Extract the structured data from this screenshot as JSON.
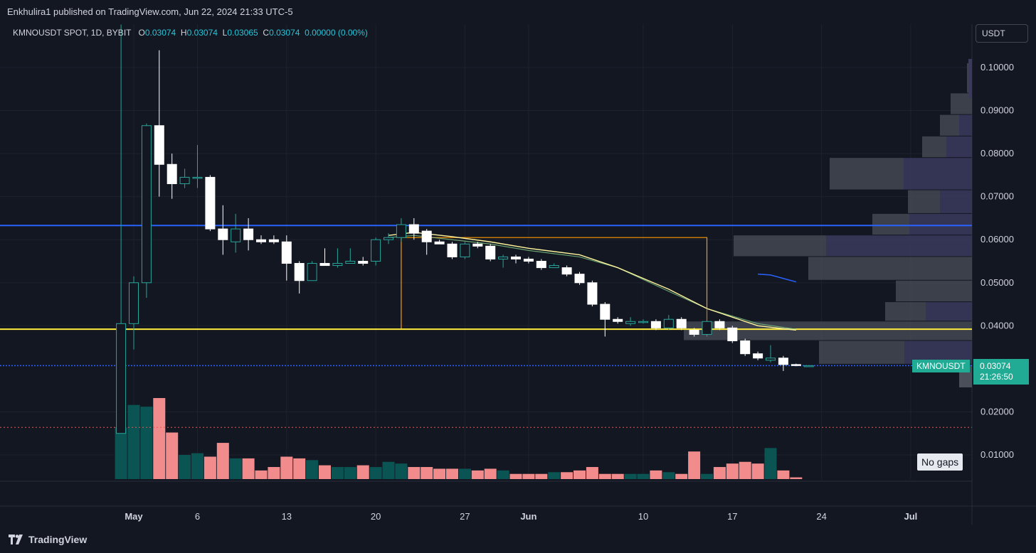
{
  "header": {
    "publisher": "Enkhulira1 published on TradingView.com, Jun 22, 2024 21:33 UTC-5"
  },
  "legend": {
    "symbol": "KMNOUSDT SPOT, 1D, BYBIT",
    "o_label": "O",
    "o": "0.03074",
    "h_label": "H",
    "h": "0.03074",
    "l_label": "L",
    "l": "0.03065",
    "c_label": "C",
    "c": "0.03074",
    "change": "0.00000 (0.00%)"
  },
  "currency": "USDT",
  "no_gaps": "No gaps",
  "last_price": {
    "ticker": "KMNOUSDT",
    "price": "0.03074",
    "countdown": "21:26:50"
  },
  "footer": {
    "brand": "TradingView"
  },
  "colors": {
    "up": "#26a69a",
    "down": "#ef5350",
    "bull_body": "#131722",
    "bear_body": "#ffffff",
    "vol_up": "#0b5454",
    "vol_down": "#f28b8b",
    "blue_line": "#2962ff",
    "yellow_line": "#ffeb3b",
    "orange_rect": "#ff9800",
    "ma_yellow": "#fff59d",
    "ma_green": "#81c784",
    "background": "#131722",
    "grid": "#1e222d"
  },
  "chart_data": {
    "type": "candlestick",
    "y_axis": {
      "ticks": [
        "0.10000",
        "0.09000",
        "0.08000",
        "0.07000",
        "0.06000",
        "0.05000",
        "0.04000",
        "0.02000",
        "0.01000"
      ],
      "ylim": [
        0.004,
        0.108
      ]
    },
    "x_axis": {
      "ticks": [
        "May",
        "6",
        "13",
        "20",
        "27",
        "Jun",
        "10",
        "17",
        "24",
        "Jul"
      ]
    },
    "x_tick_days": [
      0,
      5,
      12,
      19,
      26,
      31,
      40,
      47,
      54,
      61
    ],
    "horizontal_lines": [
      {
        "name": "resistance",
        "price": 0.0633,
        "color": "#2962ff"
      },
      {
        "name": "support",
        "price": 0.0392,
        "color": "#ffeb3b"
      },
      {
        "name": "last",
        "price": 0.03074,
        "color": "#2962ff",
        "dotted": true
      }
    ],
    "candles": [
      {
        "d": -1,
        "o": 0.015,
        "h": 0.11,
        "l": 0.015,
        "c": 0.0405
      },
      {
        "d": 0,
        "o": 0.0405,
        "h": 0.0515,
        "l": 0.0345,
        "c": 0.05
      },
      {
        "d": 1,
        "o": 0.05,
        "h": 0.087,
        "l": 0.0465,
        "c": 0.0865
      },
      {
        "d": 2,
        "o": 0.0865,
        "h": 0.104,
        "l": 0.07,
        "c": 0.0775
      },
      {
        "d": 3,
        "o": 0.0775,
        "h": 0.08,
        "l": 0.0695,
        "c": 0.073
      },
      {
        "d": 4,
        "o": 0.073,
        "h": 0.0765,
        "l": 0.072,
        "c": 0.0745
      },
      {
        "d": 5,
        "o": 0.0745,
        "h": 0.082,
        "l": 0.072,
        "c": 0.0745
      },
      {
        "d": 6,
        "o": 0.0745,
        "h": 0.075,
        "l": 0.062,
        "c": 0.0625
      },
      {
        "d": 7,
        "o": 0.0625,
        "h": 0.068,
        "l": 0.0565,
        "c": 0.06
      },
      {
        "d": 8,
        "o": 0.0595,
        "h": 0.066,
        "l": 0.057,
        "c": 0.0625
      },
      {
        "d": 9,
        "o": 0.0625,
        "h": 0.065,
        "l": 0.0575,
        "c": 0.06
      },
      {
        "d": 10,
        "o": 0.06,
        "h": 0.061,
        "l": 0.059,
        "c": 0.0595
      },
      {
        "d": 11,
        "o": 0.06,
        "h": 0.061,
        "l": 0.059,
        "c": 0.0595
      },
      {
        "d": 12,
        "o": 0.0595,
        "h": 0.061,
        "l": 0.0505,
        "c": 0.0545
      },
      {
        "d": 13,
        "o": 0.0545,
        "h": 0.055,
        "l": 0.0475,
        "c": 0.0505
      },
      {
        "d": 14,
        "o": 0.0505,
        "h": 0.055,
        "l": 0.0505,
        "c": 0.0545
      },
      {
        "d": 15,
        "o": 0.0545,
        "h": 0.058,
        "l": 0.054,
        "c": 0.054
      },
      {
        "d": 16,
        "o": 0.054,
        "h": 0.058,
        "l": 0.0535,
        "c": 0.0545
      },
      {
        "d": 17,
        "o": 0.0545,
        "h": 0.058,
        "l": 0.0545,
        "c": 0.055
      },
      {
        "d": 18,
        "o": 0.055,
        "h": 0.056,
        "l": 0.054,
        "c": 0.0545
      },
      {
        "d": 19,
        "o": 0.055,
        "h": 0.0605,
        "l": 0.054,
        "c": 0.06
      },
      {
        "d": 20,
        "o": 0.06,
        "h": 0.0615,
        "l": 0.059,
        "c": 0.0605
      },
      {
        "d": 21,
        "o": 0.0605,
        "h": 0.065,
        "l": 0.0595,
        "c": 0.0635
      },
      {
        "d": 22,
        "o": 0.0635,
        "h": 0.065,
        "l": 0.06,
        "c": 0.0615
      },
      {
        "d": 23,
        "o": 0.062,
        "h": 0.0625,
        "l": 0.0565,
        "c": 0.0595
      },
      {
        "d": 24,
        "o": 0.0595,
        "h": 0.06,
        "l": 0.059,
        "c": 0.059
      },
      {
        "d": 25,
        "o": 0.059,
        "h": 0.0595,
        "l": 0.0555,
        "c": 0.056
      },
      {
        "d": 26,
        "o": 0.056,
        "h": 0.0595,
        "l": 0.0555,
        "c": 0.059
      },
      {
        "d": 27,
        "o": 0.059,
        "h": 0.0595,
        "l": 0.058,
        "c": 0.0585
      },
      {
        "d": 28,
        "o": 0.0585,
        "h": 0.059,
        "l": 0.055,
        "c": 0.0555
      },
      {
        "d": 29,
        "o": 0.0555,
        "h": 0.0565,
        "l": 0.0535,
        "c": 0.056
      },
      {
        "d": 30,
        "o": 0.056,
        "h": 0.0565,
        "l": 0.0545,
        "c": 0.0555
      },
      {
        "d": 31,
        "o": 0.0555,
        "h": 0.056,
        "l": 0.0545,
        "c": 0.055
      },
      {
        "d": 32,
        "o": 0.055,
        "h": 0.0555,
        "l": 0.053,
        "c": 0.0535
      },
      {
        "d": 33,
        "o": 0.0535,
        "h": 0.0545,
        "l": 0.0535,
        "c": 0.054
      },
      {
        "d": 34,
        "o": 0.0535,
        "h": 0.054,
        "l": 0.0515,
        "c": 0.052
      },
      {
        "d": 35,
        "o": 0.052,
        "h": 0.0525,
        "l": 0.0495,
        "c": 0.05
      },
      {
        "d": 36,
        "o": 0.05,
        "h": 0.0505,
        "l": 0.0445,
        "c": 0.045
      },
      {
        "d": 37,
        "o": 0.045,
        "h": 0.0455,
        "l": 0.0375,
        "c": 0.0415
      },
      {
        "d": 38,
        "o": 0.0415,
        "h": 0.042,
        "l": 0.0405,
        "c": 0.041
      },
      {
        "d": 39,
        "o": 0.0405,
        "h": 0.042,
        "l": 0.04,
        "c": 0.041
      },
      {
        "d": 40,
        "o": 0.041,
        "h": 0.0415,
        "l": 0.0405,
        "c": 0.041
      },
      {
        "d": 41,
        "o": 0.041,
        "h": 0.0415,
        "l": 0.039,
        "c": 0.0395
      },
      {
        "d": 42,
        "o": 0.0395,
        "h": 0.0425,
        "l": 0.039,
        "c": 0.0415
      },
      {
        "d": 43,
        "o": 0.0415,
        "h": 0.042,
        "l": 0.039,
        "c": 0.0395
      },
      {
        "d": 44,
        "o": 0.039,
        "h": 0.0395,
        "l": 0.0375,
        "c": 0.038
      },
      {
        "d": 45,
        "o": 0.038,
        "h": 0.044,
        "l": 0.0375,
        "c": 0.041
      },
      {
        "d": 46,
        "o": 0.041,
        "h": 0.0415,
        "l": 0.039,
        "c": 0.0395
      },
      {
        "d": 47,
        "o": 0.0395,
        "h": 0.04,
        "l": 0.036,
        "c": 0.0365
      },
      {
        "d": 48,
        "o": 0.0365,
        "h": 0.037,
        "l": 0.033,
        "c": 0.0335
      },
      {
        "d": 49,
        "o": 0.0335,
        "h": 0.034,
        "l": 0.032,
        "c": 0.0325
      },
      {
        "d": 50,
        "o": 0.032,
        "h": 0.0355,
        "l": 0.0315,
        "c": 0.0325
      },
      {
        "d": 51,
        "o": 0.0325,
        "h": 0.033,
        "l": 0.0295,
        "c": 0.031
      },
      {
        "d": 52,
        "o": 0.031,
        "h": 0.0312,
        "l": 0.0306,
        "c": 0.0308
      },
      {
        "d": 53,
        "o": 0.03074,
        "h": 0.03074,
        "l": 0.03065,
        "c": 0.03074
      }
    ],
    "volume": [
      0.015,
      0.0215,
      0.021,
      0.0235,
      0.0135,
      0.007,
      0.0075,
      0.0065,
      0.0105,
      0.006,
      0.006,
      0.0025,
      0.0035,
      0.0065,
      0.006,
      0.0055,
      0.004,
      0.0035,
      0.0035,
      0.004,
      0.0035,
      0.005,
      0.0045,
      0.0035,
      0.0035,
      0.003,
      0.003,
      0.003,
      0.0025,
      0.003,
      0.0025,
      0.0015,
      0.0015,
      0.0015,
      0.002,
      0.002,
      0.0025,
      0.0035,
      0.0015,
      0.0015,
      0.0015,
      0.0015,
      0.0025,
      0.002,
      0.0015,
      0.008,
      0.0015,
      0.0035,
      0.0045,
      0.005,
      0.0045,
      0.009,
      0.0025,
      0.0005
    ],
    "volume_ylim": [
      0,
      0.028
    ],
    "ma_yellow": [
      [
        20,
        0.061
      ],
      [
        22,
        0.0617
      ],
      [
        25,
        0.0607
      ],
      [
        28,
        0.0595
      ],
      [
        31,
        0.058
      ],
      [
        35,
        0.0565
      ],
      [
        38,
        0.0535
      ],
      [
        42,
        0.0485
      ],
      [
        45,
        0.044
      ],
      [
        49,
        0.04
      ],
      [
        52,
        0.039
      ]
    ],
    "ma_green": [
      [
        20,
        0.0605
      ],
      [
        22,
        0.061
      ],
      [
        25,
        0.06
      ],
      [
        28,
        0.059
      ],
      [
        31,
        0.0575
      ],
      [
        35,
        0.056
      ],
      [
        38,
        0.0535
      ],
      [
        42,
        0.048
      ],
      [
        45,
        0.044
      ],
      [
        49,
        0.0405
      ],
      [
        52,
        0.0392
      ]
    ],
    "ma_blue_small": [
      [
        49,
        0.052
      ],
      [
        50,
        0.0518
      ],
      [
        51,
        0.051
      ],
      [
        52,
        0.0502
      ]
    ],
    "orange_box": {
      "d0": 21,
      "d1": 45,
      "top": 0.0605,
      "bottom": 0.0393
    },
    "volume_profile": [
      {
        "p0": 0.094,
        "p1": 0.101,
        "a": 0,
        "b": 7
      },
      {
        "p0": 0.089,
        "p1": 0.094,
        "a": 0,
        "b": 30
      },
      {
        "p0": 0.084,
        "p1": 0.089,
        "a": 18,
        "b": 45
      },
      {
        "p0": 0.079,
        "p1": 0.084,
        "a": 36,
        "b": 70
      },
      {
        "p0": 0.0715,
        "p1": 0.079,
        "a": 96,
        "b": 200
      },
      {
        "p0": 0.066,
        "p1": 0.0715,
        "a": 45,
        "b": 90
      },
      {
        "p0": 0.061,
        "p1": 0.066,
        "a": 88,
        "b": 140
      },
      {
        "p0": 0.056,
        "p1": 0.061,
        "a": 205,
        "b": 335
      },
      {
        "p0": 0.0505,
        "p1": 0.056,
        "a": 0,
        "b": 230
      },
      {
        "p0": 0.0455,
        "p1": 0.0505,
        "a": 0,
        "b": 107
      },
      {
        "p0": 0.041,
        "p1": 0.0455,
        "a": 65,
        "b": 122
      },
      {
        "p0": 0.0365,
        "p1": 0.041,
        "a": 0,
        "b": 405
      },
      {
        "p0": 0.031,
        "p1": 0.0365,
        "a": 95,
        "b": 215
      },
      {
        "p0": 0.029,
        "p1": 0.031,
        "a": 0,
        "b": 12
      }
    ]
  }
}
